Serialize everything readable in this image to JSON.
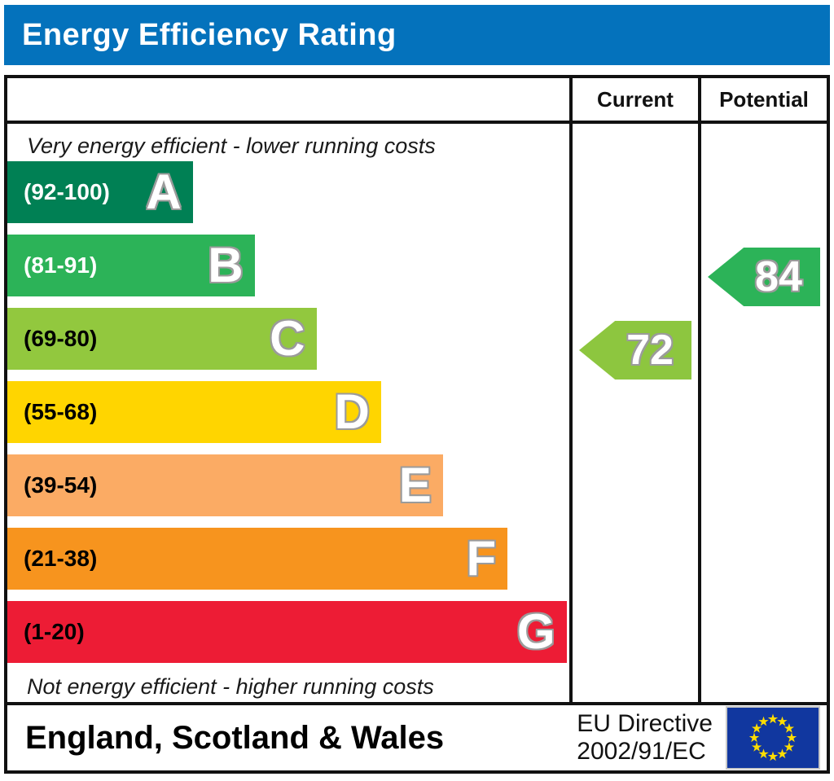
{
  "header": {
    "title": "Energy Efficiency Rating",
    "background_color": "#0472bc"
  },
  "table": {
    "columns": {
      "current": "Current",
      "potential": "Potential"
    }
  },
  "chart_data": {
    "type": "bar",
    "title": "Energy Efficiency Rating",
    "top_note": "Very energy efficient - lower running costs",
    "bottom_note": "Not energy efficient - higher running costs",
    "bands": [
      {
        "letter": "A",
        "range": "(92-100)",
        "min": 92,
        "max": 100,
        "color": "#008054",
        "label_color": "#ffffff",
        "width_pct": 33
      },
      {
        "letter": "B",
        "range": "(81-91)",
        "min": 81,
        "max": 91,
        "color": "#2cb358",
        "label_color": "#ffffff",
        "width_pct": 44
      },
      {
        "letter": "C",
        "range": "(69-80)",
        "min": 69,
        "max": 80,
        "color": "#92c83e",
        "label_color": "#000000",
        "width_pct": 55
      },
      {
        "letter": "D",
        "range": "(55-68)",
        "min": 55,
        "max": 68,
        "color": "#ffd500",
        "label_color": "#000000",
        "width_pct": 66.5
      },
      {
        "letter": "E",
        "range": "(39-54)",
        "min": 39,
        "max": 54,
        "color": "#fbab64",
        "label_color": "#000000",
        "width_pct": 77.5
      },
      {
        "letter": "F",
        "range": "(21-38)",
        "min": 21,
        "max": 38,
        "color": "#f7941e",
        "label_color": "#000000",
        "width_pct": 89
      },
      {
        "letter": "G",
        "range": "(1-20)",
        "min": 1,
        "max": 20,
        "color": "#ed1c35",
        "label_color": "#000000",
        "width_pct": 99.5
      }
    ],
    "current": {
      "value": 72,
      "band": "C",
      "color": "#8dc63f"
    },
    "potential": {
      "value": 84,
      "band": "B",
      "color": "#2cb358"
    }
  },
  "footer": {
    "region": "England, Scotland & Wales",
    "directive_line1": "EU Directive",
    "directive_line2": "2002/91/EC",
    "flag": {
      "icon": "eu-flag",
      "blue": "#11379f",
      "star_yellow": "#ffdd00"
    }
  }
}
